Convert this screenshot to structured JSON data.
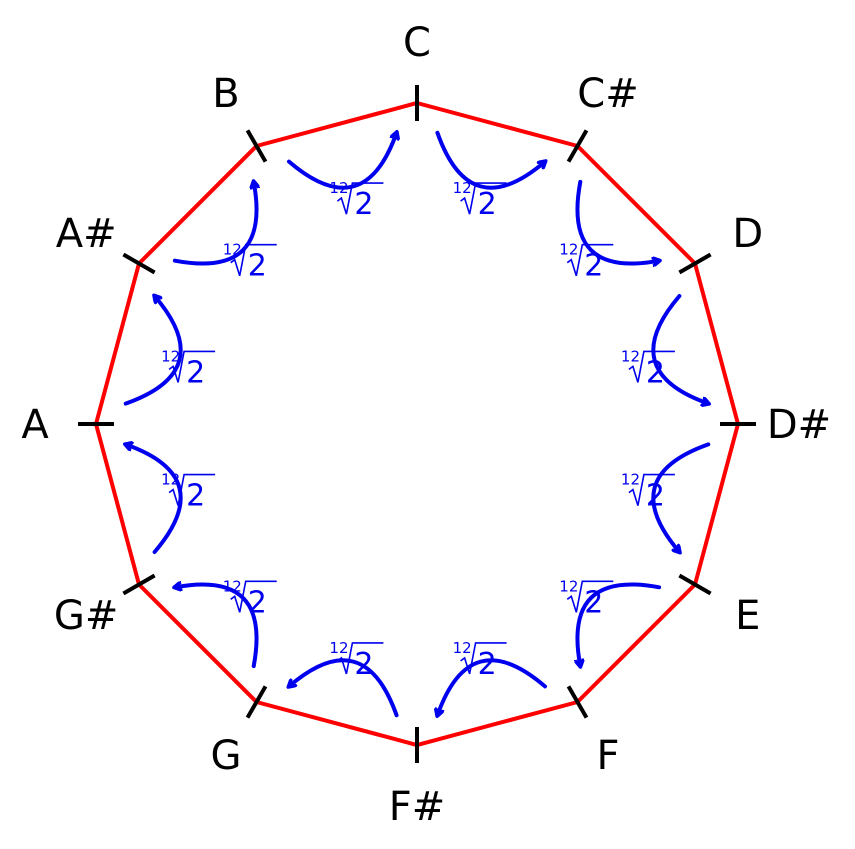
{
  "diagram": {
    "notes": [
      "C",
      "C#",
      "D",
      "D#",
      "E",
      "F",
      "F#",
      "G",
      "G#",
      "A",
      "A#",
      "B"
    ],
    "step_label": {
      "index": "12",
      "radicand": "2"
    },
    "colors": {
      "polygon": "#ff0000",
      "arrows": "#0000ee",
      "ticks": "#000000",
      "labels": "#000000"
    }
  }
}
